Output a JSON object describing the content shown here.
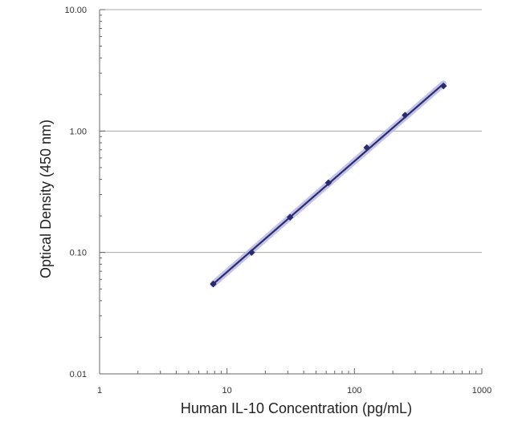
{
  "chart_data": {
    "type": "line",
    "title": "",
    "xlabel": "Human IL-10 Concentration (pg/mL)",
    "ylabel": "Optical Density (450 nm)",
    "x_scale": "log",
    "y_scale": "log",
    "xlim": [
      1,
      1000
    ],
    "ylim": [
      0.01,
      10
    ],
    "x_ticks": [
      1,
      10,
      100,
      1000
    ],
    "x_tick_labels": [
      "1",
      "10",
      "100",
      "1000"
    ],
    "y_ticks": [
      0.01,
      0.1,
      1,
      10
    ],
    "y_tick_labels": [
      "0.01",
      "0.10",
      "1.00",
      "10.00"
    ],
    "grid": "horizontal major lines",
    "series": [
      {
        "x": [
          7.8,
          15.6,
          31.25,
          62.5,
          125,
          250,
          500
        ],
        "y": [
          0.055,
          0.1,
          0.195,
          0.375,
          0.73,
          1.35,
          2.35
        ],
        "fit_line": {
          "x": [
            7.8,
            500
          ],
          "y": [
            0.055,
            2.45
          ]
        },
        "color": "#2b2a6d",
        "halo_color": "#b9b8e6",
        "marker": "diamond"
      }
    ]
  }
}
